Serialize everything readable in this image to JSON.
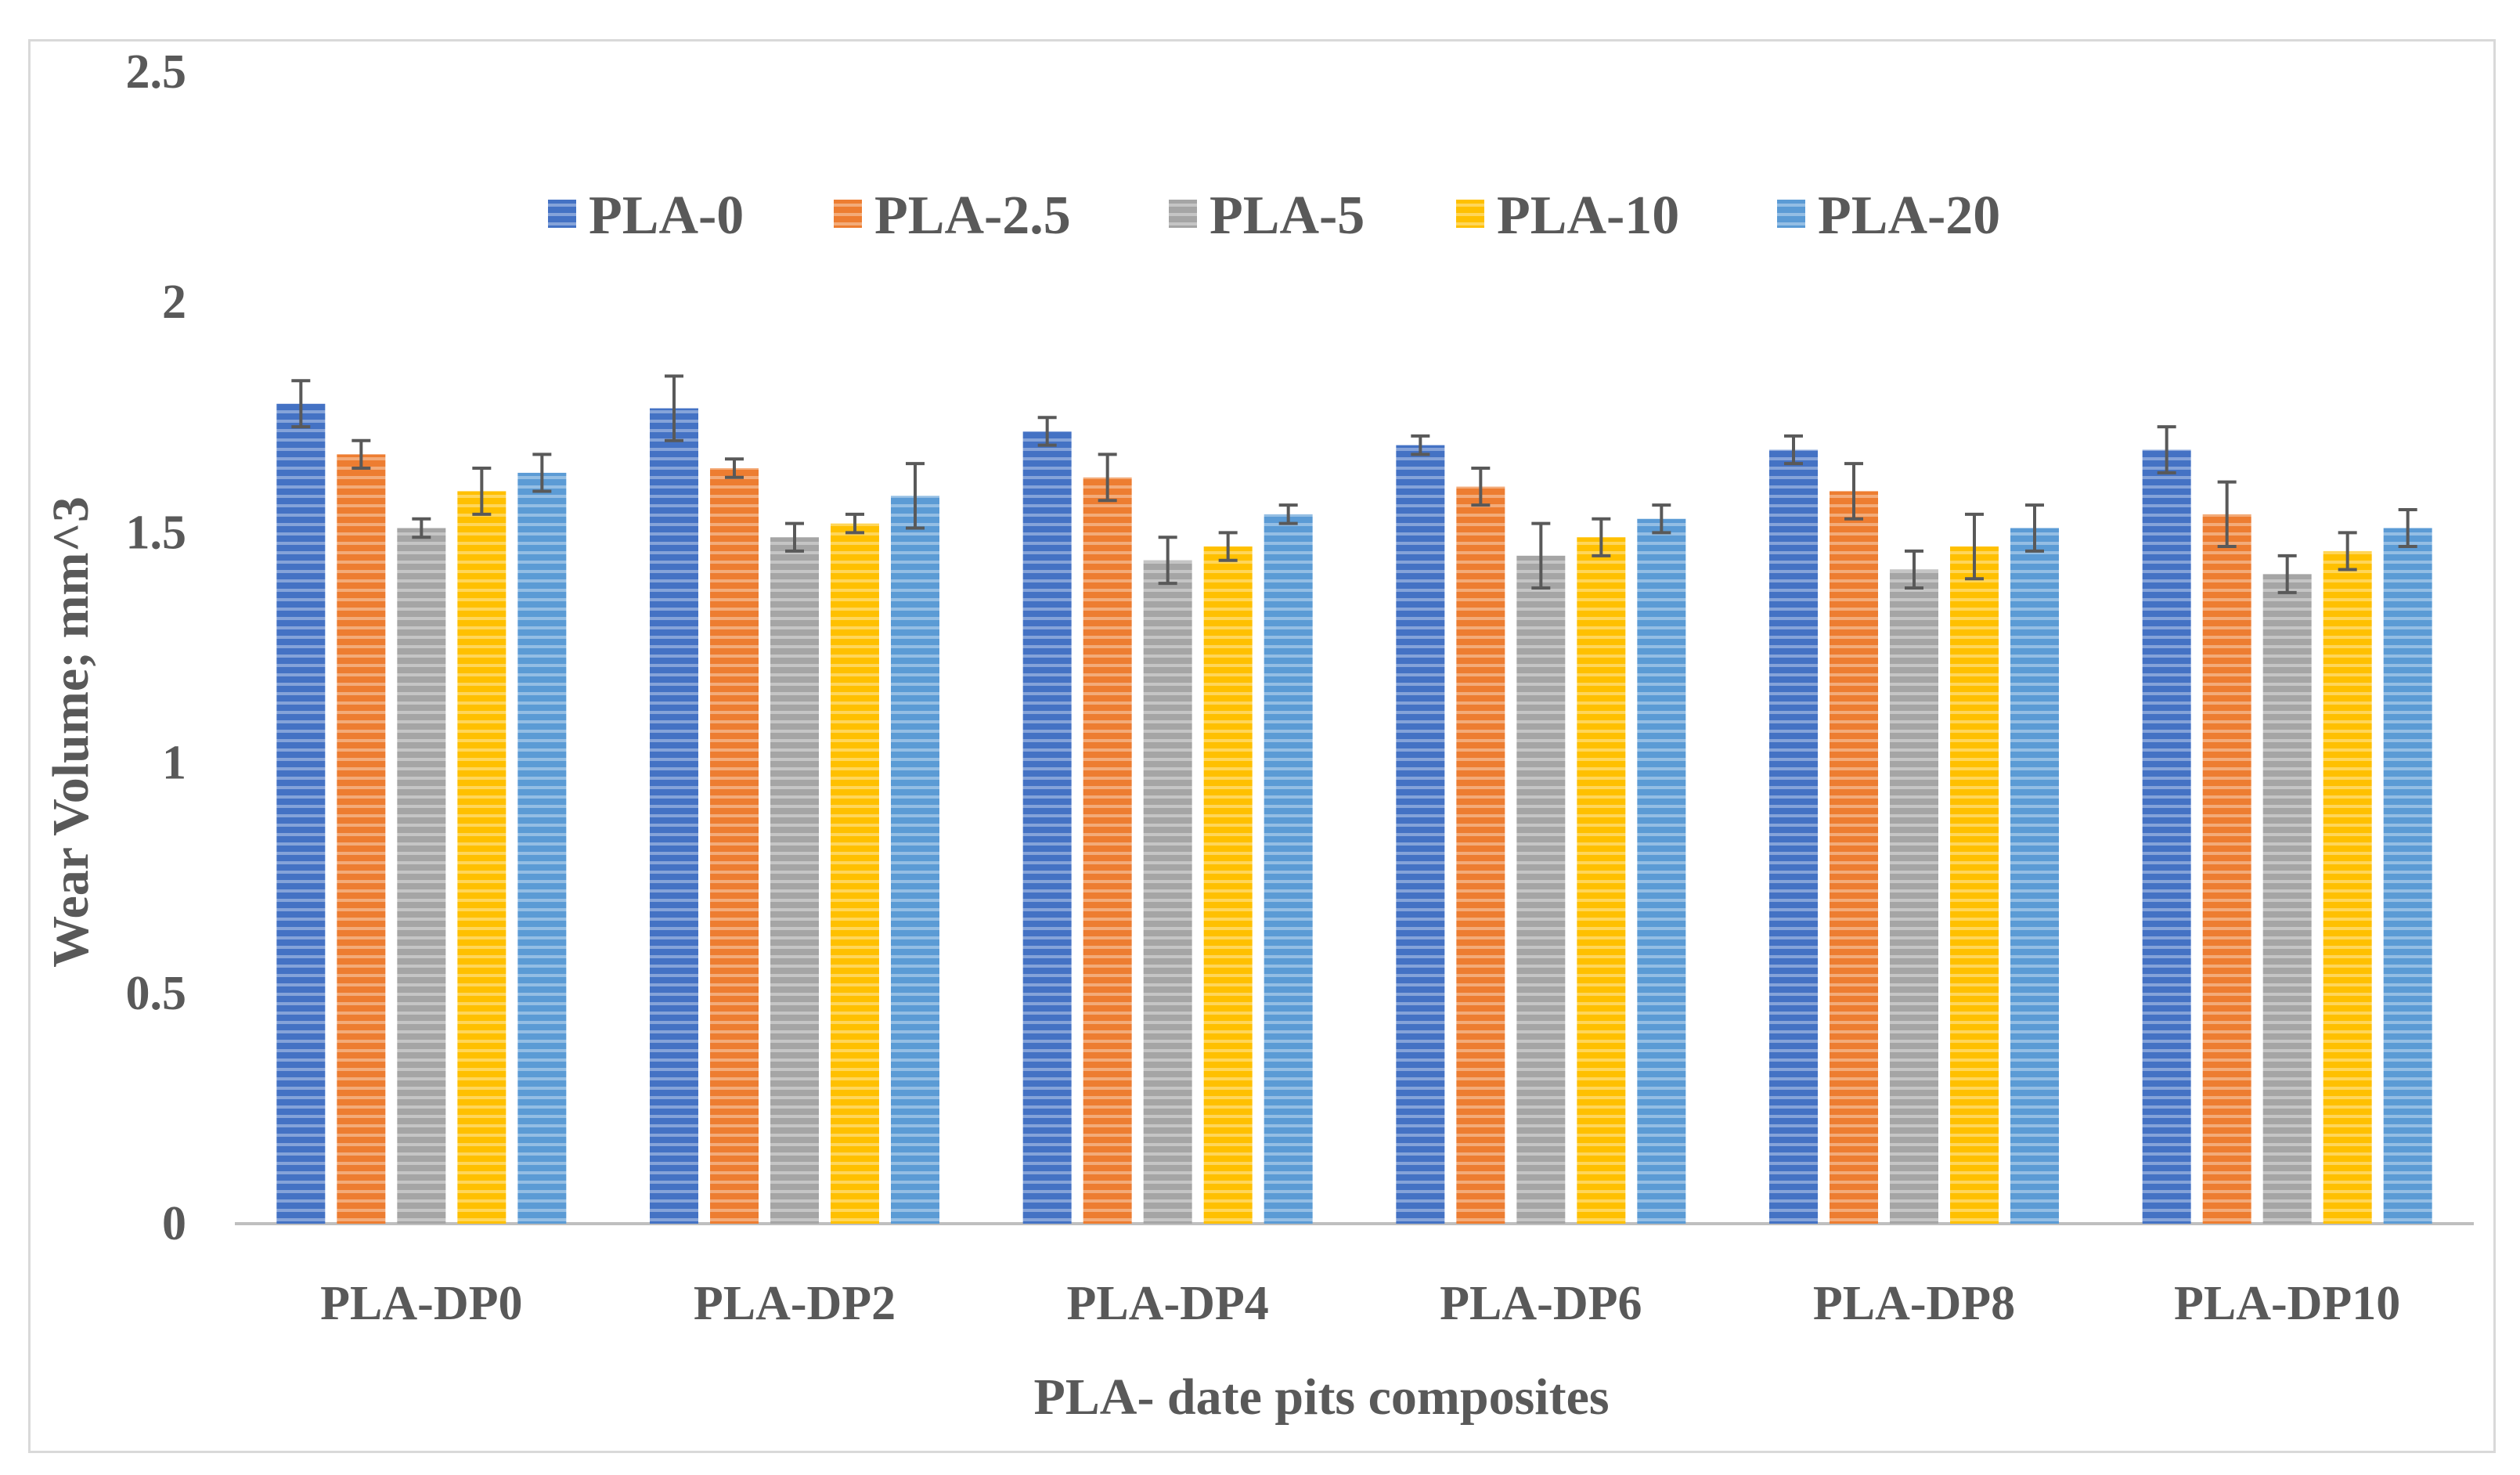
{
  "chart_data": {
    "type": "bar",
    "title": "",
    "xlabel": "PLA- date pits composites",
    "ylabel": "Wear Volume; mm^3",
    "ylim": [
      0,
      2.5
    ],
    "yticks": [
      "0",
      "0.5",
      "1",
      "1.5",
      "2",
      "2.5"
    ],
    "ytick_values": [
      0,
      0.5,
      1,
      1.5,
      2,
      2.5
    ],
    "legend_position": "top-center",
    "gridlines": false,
    "categories": [
      "PLA-DP0",
      "PLA-DP2",
      "PLA-DP4",
      "PLA-DP6",
      "PLA-DP8",
      "PLA-DP10"
    ],
    "series": [
      {
        "name": "PLA-0",
        "color": "#4472C4",
        "values": [
          1.78,
          1.77,
          1.72,
          1.69,
          1.68,
          1.68
        ],
        "errors": [
          0.05,
          0.07,
          0.03,
          0.02,
          0.03,
          0.05
        ]
      },
      {
        "name": "PLA-2.5",
        "color": "#ED7D31",
        "values": [
          1.67,
          1.64,
          1.62,
          1.6,
          1.59,
          1.54
        ],
        "errors": [
          0.03,
          0.02,
          0.05,
          0.04,
          0.06,
          0.07
        ]
      },
      {
        "name": "PLA-5",
        "color": "#A5A5A5",
        "values": [
          1.51,
          1.49,
          1.44,
          1.45,
          1.42,
          1.41
        ],
        "errors": [
          0.02,
          0.03,
          0.05,
          0.07,
          0.04,
          0.04
        ]
      },
      {
        "name": "PLA-10",
        "color": "#FFC000",
        "values": [
          1.59,
          1.52,
          1.47,
          1.49,
          1.47,
          1.46
        ],
        "errors": [
          0.05,
          0.02,
          0.03,
          0.04,
          0.07,
          0.04
        ]
      },
      {
        "name": "PLA-20",
        "color": "#5B9BD5",
        "values": [
          1.63,
          1.58,
          1.54,
          1.53,
          1.51,
          1.51
        ],
        "errors": [
          0.04,
          0.07,
          0.02,
          0.03,
          0.05,
          0.04
        ]
      }
    ]
  }
}
